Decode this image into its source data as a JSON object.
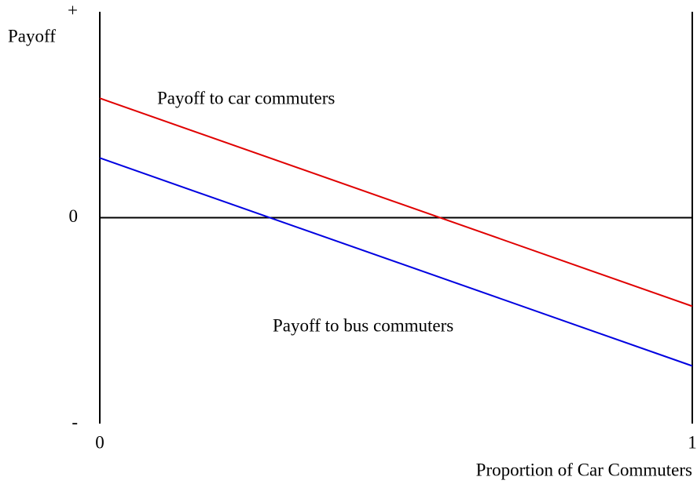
{
  "chart_data": {
    "type": "line",
    "x_label": "Proportion of Car Commuters",
    "y_label": "Payoff",
    "x": [
      0,
      1
    ],
    "series": [
      {
        "name": "Payoff to car commuters",
        "color": "#e00000",
        "values": [
          0.58,
          -0.43
        ]
      },
      {
        "name": "Payoff to bus commuters",
        "color": "#0000e0",
        "values": [
          0.29,
          -0.72
        ]
      }
    ],
    "xlim": [
      0,
      1
    ],
    "xticks": [
      0,
      1
    ],
    "ylim": [
      -1,
      1
    ],
    "yticks": [
      {
        "value": 1,
        "label": "+"
      },
      0,
      {
        "value": -1,
        "label": "-"
      }
    ]
  }
}
